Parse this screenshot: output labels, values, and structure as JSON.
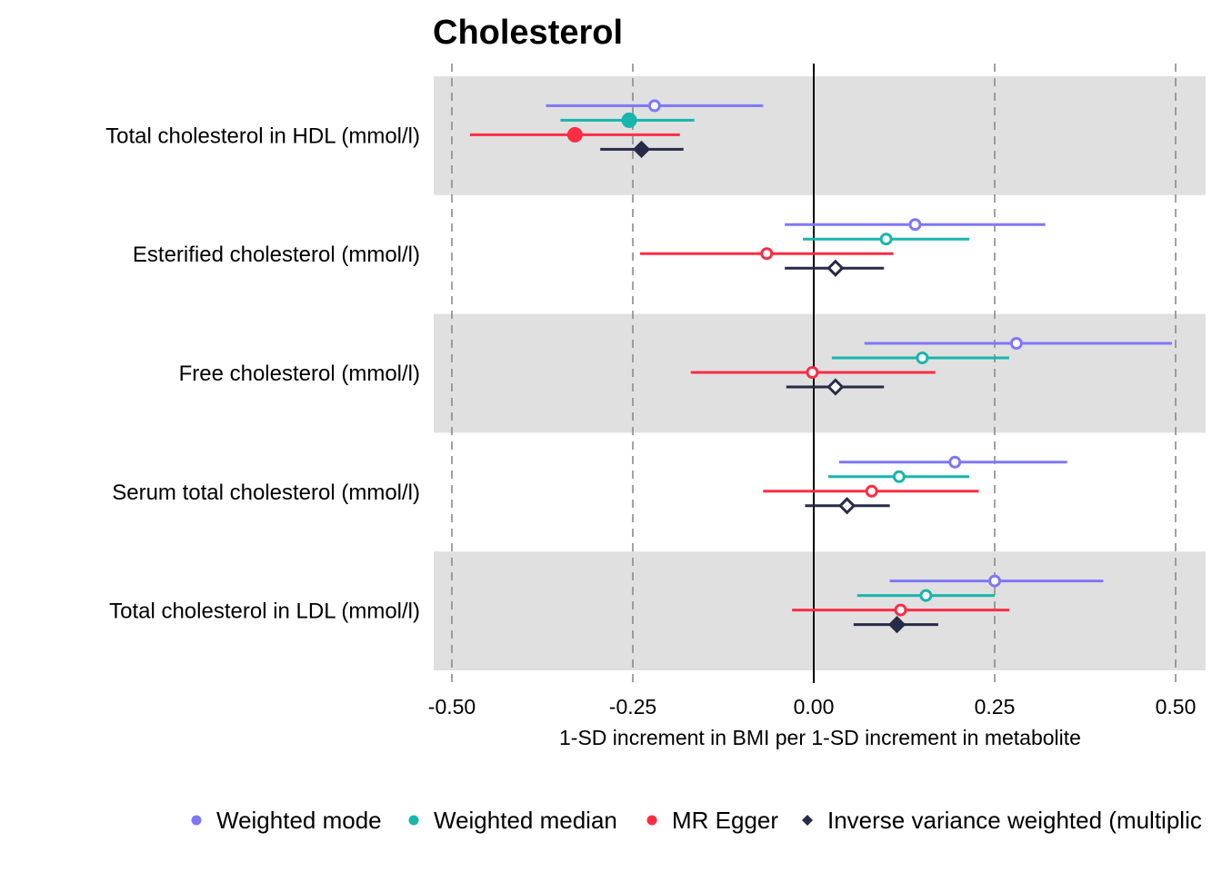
{
  "chart_data": {
    "type": "forest",
    "title": "Cholesterol",
    "xlabel": "1-SD increment in BMI per 1-SD increment in metabolite",
    "xlim": [
      -0.5,
      0.5
    ],
    "xticks": [
      -0.5,
      -0.25,
      0.0,
      0.25,
      0.5
    ],
    "xtick_labels": [
      "-0.50",
      "-0.25",
      "0.00",
      "0.25",
      "0.50"
    ],
    "grid": "dashed vertical gridlines",
    "legend_position": "bottom",
    "categories": [
      "Total cholesterol in HDL (mmol/l)",
      "Esterified cholesterol (mmol/l)",
      "Free cholesterol (mmol/l)",
      "Serum total cholesterol (mmol/l)",
      "Total cholesterol in LDL (mmol/l)"
    ],
    "series": [
      {
        "name": "Weighted mode",
        "color": "#7f77fa",
        "marker": "circle",
        "estimate": [
          -0.22,
          0.14,
          0.28,
          0.195,
          0.25
        ],
        "lower": [
          -0.37,
          -0.04,
          0.07,
          0.035,
          0.105
        ],
        "upper": [
          -0.07,
          0.32,
          0.495,
          0.35,
          0.4
        ],
        "significant": [
          false,
          false,
          false,
          false,
          false
        ]
      },
      {
        "name": "Weighted median",
        "color": "#18b5ac",
        "marker": "circle",
        "estimate": [
          -0.255,
          0.1,
          0.15,
          0.118,
          0.155
        ],
        "lower": [
          -0.35,
          -0.015,
          0.025,
          0.02,
          0.06
        ],
        "upper": [
          -0.165,
          0.215,
          0.27,
          0.215,
          0.25
        ],
        "significant": [
          true,
          false,
          false,
          false,
          false
        ]
      },
      {
        "name": "MR Egger",
        "color": "#fa2d44",
        "marker": "circle",
        "estimate": [
          -0.33,
          -0.065,
          -0.002,
          0.08,
          0.12
        ],
        "lower": [
          -0.475,
          -0.24,
          -0.17,
          -0.07,
          -0.03
        ],
        "upper": [
          -0.185,
          0.11,
          0.168,
          0.228,
          0.27
        ],
        "significant": [
          true,
          false,
          false,
          false,
          false
        ]
      },
      {
        "name": "Inverse variance weighted (multiplic",
        "color": "#262c48",
        "marker": "diamond",
        "estimate": [
          -0.238,
          0.03,
          0.03,
          0.046,
          0.115
        ],
        "lower": [
          -0.295,
          -0.04,
          -0.038,
          -0.012,
          0.055
        ],
        "upper": [
          -0.18,
          0.097,
          0.097,
          0.105,
          0.172
        ],
        "significant": [
          true,
          false,
          false,
          false,
          true
        ]
      }
    ]
  }
}
